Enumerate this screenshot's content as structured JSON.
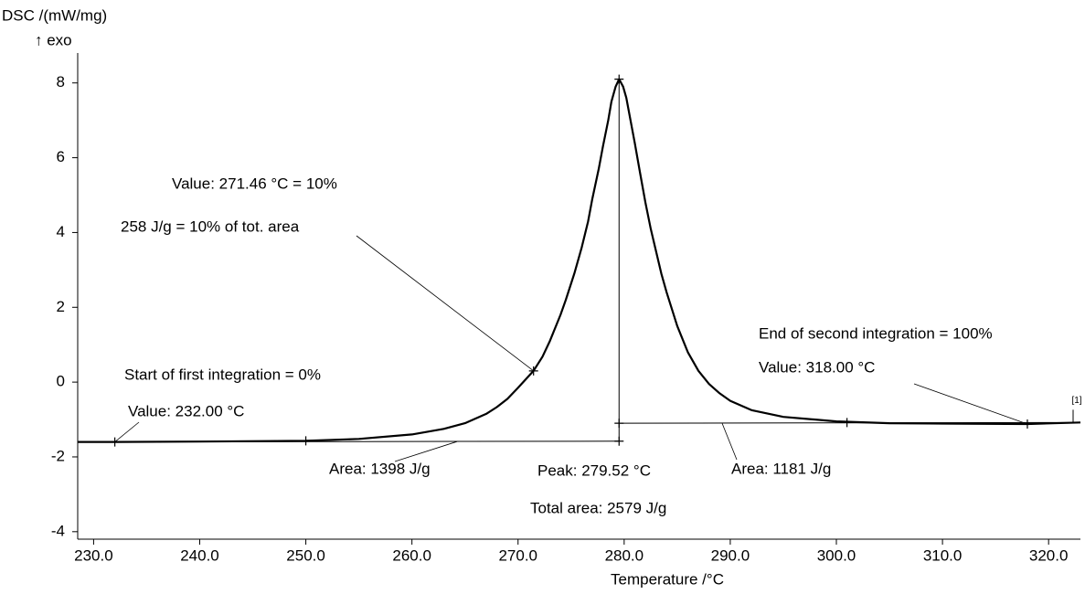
{
  "chart_data": {
    "type": "line",
    "y_label": "DSC /(mW/mg)",
    "y_sublabel": "↑ exo",
    "x_label": "Temperature /°C",
    "xlim": [
      228.5,
      323.0
    ],
    "ylim": [
      -4.2,
      8.8
    ],
    "xticks": [
      {
        "value": 230,
        "label": "230.0"
      },
      {
        "value": 240,
        "label": "240.0"
      },
      {
        "value": 250,
        "label": "250.0"
      },
      {
        "value": 260,
        "label": "260.0"
      },
      {
        "value": 270,
        "label": "270.0"
      },
      {
        "value": 280,
        "label": "280.0"
      },
      {
        "value": 290,
        "label": "290.0"
      },
      {
        "value": 300,
        "label": "300.0"
      },
      {
        "value": 310,
        "label": "310.0"
      },
      {
        "value": 320,
        "label": "320.0"
      }
    ],
    "yticks": [
      -4,
      -2,
      0,
      2,
      4,
      6,
      8
    ],
    "series": [
      {
        "name": "[1]",
        "color": "#000000",
        "x": [
          228.5,
          232,
          240,
          250,
          255,
          260,
          263,
          265,
          267,
          268,
          269,
          270,
          271.46,
          272.3,
          273,
          274,
          274.5,
          275.3,
          276,
          276.6,
          277,
          277.6,
          278,
          278.5,
          278.8,
          279.2,
          279.52,
          279.9,
          280.2,
          280.6,
          281,
          281.5,
          282,
          282.5,
          283,
          283.5,
          284,
          285,
          286,
          287,
          288,
          289,
          290,
          292,
          295,
          300,
          305,
          310,
          318,
          323
        ],
        "values": [
          -1.6,
          -1.6,
          -1.59,
          -1.57,
          -1.52,
          -1.4,
          -1.25,
          -1.1,
          -0.85,
          -0.67,
          -0.45,
          -0.15,
          0.3,
          0.68,
          1.1,
          1.8,
          2.2,
          2.9,
          3.6,
          4.3,
          4.9,
          5.7,
          6.3,
          7.0,
          7.5,
          7.9,
          8.1,
          7.9,
          7.6,
          7.0,
          6.4,
          5.6,
          4.8,
          4.1,
          3.5,
          2.9,
          2.4,
          1.5,
          0.8,
          0.3,
          -0.05,
          -0.3,
          -0.5,
          -0.75,
          -0.93,
          -1.05,
          -1.1,
          -1.11,
          -1.12,
          -1.08
        ]
      }
    ],
    "markers": [
      {
        "x": 232,
        "y": -1.6
      },
      {
        "x": 250,
        "y": -1.57
      },
      {
        "x": 271.46,
        "y": 0.3
      },
      {
        "x": 279.52,
        "y": 8.1
      },
      {
        "x": 279.52,
        "y": -1.58
      },
      {
        "x": 279.52,
        "y": -1.1
      },
      {
        "x": 301,
        "y": -1.08
      },
      {
        "x": 318,
        "y": -1.12
      }
    ],
    "baselines": [
      {
        "x": [
          232,
          279.52
        ],
        "y": [
          -1.6,
          -1.58
        ]
      },
      {
        "x": [
          279.52,
          323
        ],
        "y": [
          -1.1,
          -1.08
        ]
      }
    ],
    "annotations": [
      "Value: 271.46 °C = 10%",
      "258 J/g = 10% of tot. area",
      "End of second integration = 100%",
      "Value: 318.00 °C",
      "Start of first integration = 0%",
      "Value: 232.00 °C",
      "Area: 1398 J/g",
      "Peak: 279.52 °C",
      "Area: 1181 J/g",
      "Total area: 2579 J/g"
    ]
  }
}
